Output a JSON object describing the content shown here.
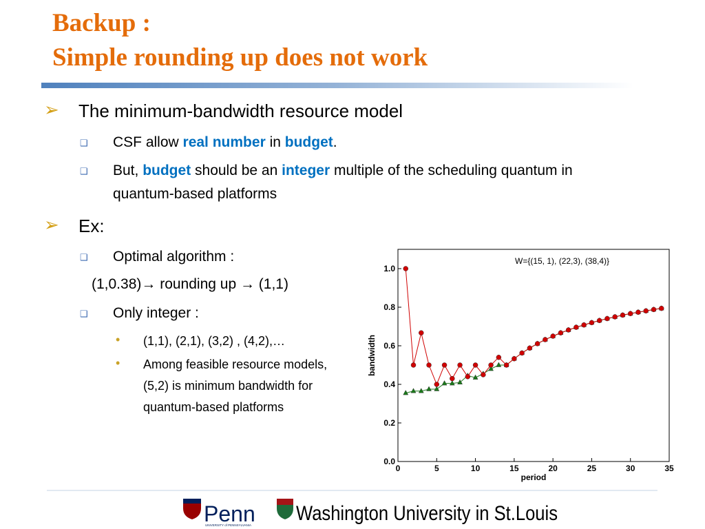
{
  "slide": {
    "title": [
      "Backup :",
      "Simple rounding up does not work"
    ],
    "bullets": [
      {
        "text": "The minimum-bandwidth resource model",
        "sub": [
          {
            "parts": [
              "CSF allow ",
              "real number",
              " in ",
              "budget",
              "."
            ]
          },
          {
            "parts": [
              "But, ",
              "budget",
              " should be an ",
              "integer",
              " multiple of the scheduling quantum in quantum-based platforms"
            ]
          }
        ]
      },
      {
        "text": "Ex:",
        "sub": [
          {
            "parts": [
              "Optimal algorithm :"
            ]
          },
          {
            "parts": [
              "(1,0.38)→ rounding up → (1,1)"
            ]
          },
          {
            "parts": [
              "Only integer :"
            ],
            "sub": [
              "(1,1), (2,1), (3,2) , (4,2),…",
              "Among feasible resource models, (5,2) is minimum bandwidth for quantum-based platforms"
            ]
          }
        ]
      }
    ],
    "footer": {
      "penn": "Penn",
      "penn_sub": "UNIVERSITY of PENNSYLVANIA",
      "washu": "Washington University in St.Louis"
    }
  },
  "chart_data": {
    "type": "line",
    "annotation": "W={(15, 1), (22,3), (38,4)}",
    "x_label": "period",
    "y_label": "bandwidth",
    "x": [
      1,
      2,
      3,
      4,
      5,
      6,
      7,
      8,
      9,
      10,
      11,
      12,
      13,
      14,
      15,
      16,
      17,
      18,
      19,
      20,
      21,
      22,
      23,
      24,
      25,
      26,
      27,
      28,
      29,
      30,
      31,
      32,
      33,
      34
    ],
    "series": [
      {
        "color": "#d00000",
        "marker": "circle",
        "values": [
          1.0,
          0.5,
          0.667,
          0.5,
          0.4,
          0.5,
          0.43,
          0.5,
          0.44,
          0.5,
          0.45,
          0.5,
          0.54,
          0.5,
          0.533,
          0.5625,
          0.588,
          0.611,
          0.632,
          0.65,
          0.667,
          0.682,
          0.696,
          0.708,
          0.72,
          0.731,
          0.741,
          0.75,
          0.759,
          0.767,
          0.774,
          0.781,
          0.788,
          0.794
        ]
      },
      {
        "color": "#1a7a1a",
        "marker": "triangle",
        "values": [
          0.355,
          0.365,
          0.365,
          0.375,
          0.375,
          0.405,
          0.405,
          0.41,
          0.445,
          0.435,
          0.455,
          0.48,
          0.5,
          0.5,
          0.533,
          0.5625,
          0.588,
          0.611,
          0.632,
          0.65,
          0.667,
          0.682,
          0.696,
          0.708,
          0.72,
          0.731,
          0.741,
          0.75,
          0.759,
          0.767,
          0.774,
          0.781,
          0.788,
          0.794
        ]
      }
    ],
    "xlim": [
      0,
      35
    ],
    "ylim": [
      0,
      1.1
    ],
    "xticks": [
      0,
      5,
      10,
      15,
      20,
      25,
      30,
      35
    ],
    "yticks": [
      {
        "value": 0,
        "label": "0.0"
      },
      0.2,
      0.4,
      0.6,
      0.8,
      {
        "value": 1,
        "label": "1.0"
      }
    ]
  }
}
